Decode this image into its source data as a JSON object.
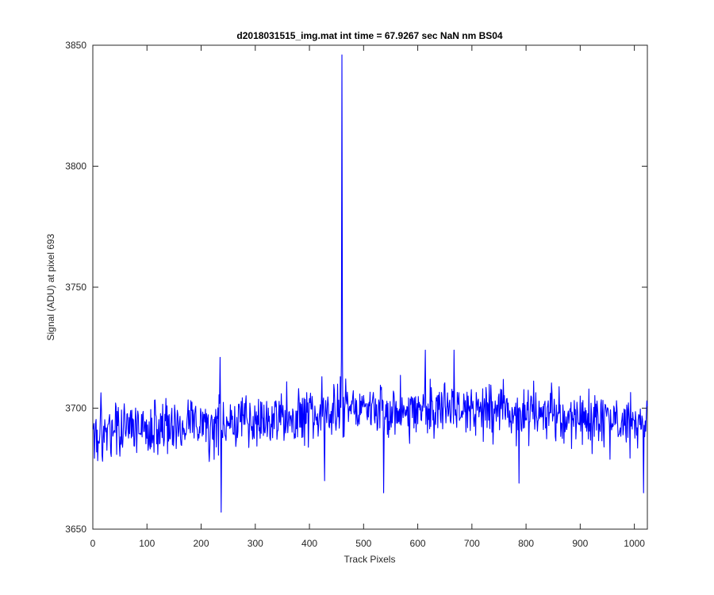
{
  "chart_data": {
    "type": "line",
    "title": "d2018031515_img.mat int time = 67.9267 sec  NaN nm BS04",
    "xlabel": "Track Pixels",
    "ylabel": "Signal (ADU) at pixel 693",
    "xlim": [
      0,
      1024
    ],
    "ylim": [
      3650,
      3850
    ],
    "xticks": [
      0,
      100,
      200,
      300,
      400,
      500,
      600,
      700,
      800,
      900,
      1000
    ],
    "yticks": [
      3650,
      3700,
      3750,
      3800,
      3850
    ],
    "grid": false,
    "series_color": "#0000ff",
    "noise_model": {
      "n_points": 1024,
      "baseline": [
        [
          0,
          3691
        ],
        [
          200,
          3693
        ],
        [
          350,
          3695
        ],
        [
          430,
          3697
        ],
        [
          470,
          3701
        ],
        [
          600,
          3699
        ],
        [
          700,
          3701
        ],
        [
          800,
          3697
        ],
        [
          1000,
          3694
        ],
        [
          1023,
          3692
        ]
      ],
      "amplitude": 10
    },
    "highlights": [
      {
        "x": 236,
        "y": 3657
      },
      {
        "x": 234,
        "y": 3721
      },
      {
        "x": 422,
        "y": 3713
      },
      {
        "x": 427,
        "y": 3670
      },
      {
        "x": 456,
        "y": 3713
      },
      {
        "x": 458,
        "y": 3720
      },
      {
        "x": 459,
        "y": 3846
      },
      {
        "x": 460,
        "y": 3721
      },
      {
        "x": 536,
        "y": 3665
      },
      {
        "x": 613,
        "y": 3724
      },
      {
        "x": 666,
        "y": 3724
      },
      {
        "x": 786,
        "y": 3669
      },
      {
        "x": 1016,
        "y": 3665
      },
      {
        "x": 1022,
        "y": 3703
      }
    ]
  }
}
